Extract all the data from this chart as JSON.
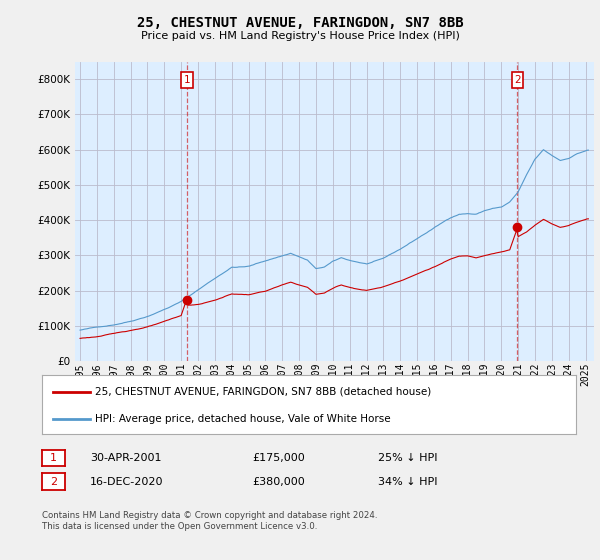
{
  "title": "25, CHESTNUT AVENUE, FARINGDON, SN7 8BB",
  "subtitle": "Price paid vs. HM Land Registry's House Price Index (HPI)",
  "ytick_values": [
    0,
    100000,
    200000,
    300000,
    400000,
    500000,
    600000,
    700000,
    800000
  ],
  "ylim": [
    0,
    850000
  ],
  "legend_entry1": "25, CHESTNUT AVENUE, FARINGDON, SN7 8BB (detached house)",
  "legend_entry2": "HPI: Average price, detached house, Vale of White Horse",
  "sale1_date": "30-APR-2001",
  "sale1_price": "£175,000",
  "sale1_note": "25% ↓ HPI",
  "sale2_date": "16-DEC-2020",
  "sale2_price": "£380,000",
  "sale2_note": "34% ↓ HPI",
  "footer": "Contains HM Land Registry data © Crown copyright and database right 2024.\nThis data is licensed under the Open Government Licence v3.0.",
  "line_color_property": "#cc0000",
  "line_color_hpi": "#5599cc",
  "background_color": "#f0f0f0",
  "plot_bg_color": "#ddeeff",
  "grid_color": "#bbbbcc",
  "sale1_x": 2001.33,
  "sale1_y": 175000,
  "sale2_x": 2020.96,
  "sale2_y": 380000,
  "xlim_left": 1994.7,
  "xlim_right": 2025.5,
  "xtick_years": [
    1995,
    1996,
    1997,
    1998,
    1999,
    2000,
    2001,
    2002,
    2003,
    2004,
    2005,
    2006,
    2007,
    2008,
    2009,
    2010,
    2011,
    2012,
    2013,
    2014,
    2015,
    2016,
    2017,
    2018,
    2019,
    2020,
    2021,
    2022,
    2023,
    2024,
    2025
  ]
}
